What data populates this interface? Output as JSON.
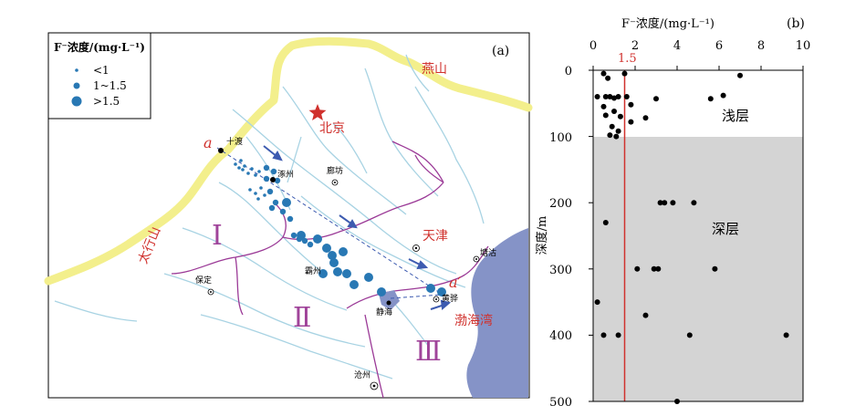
{
  "map": {
    "panel_label": "(a)",
    "legend": {
      "title": "F⁻浓度/(mg·L⁻¹)",
      "items": [
        {
          "label": "<1"
        },
        {
          "label": "1~1.5"
        },
        {
          "label": ">1.5"
        }
      ]
    },
    "cities": {
      "beijing": "北京",
      "tianjin": "天津",
      "zhuozhou": "涿州",
      "langfang": "廊坊",
      "bazhou": "霸州",
      "baoding": "保定",
      "jinghai": "静海",
      "tanggu": "塘沽",
      "huanghua": "黄骅",
      "cangzhou": "沧州",
      "shidu": "十渡"
    },
    "regions": {
      "yanshan": "燕山",
      "taihangshan": "太行山",
      "bohai": "渤海湾",
      "zone1": "Ⅰ",
      "zone2": "Ⅱ",
      "zone3": "Ⅲ"
    },
    "profile": {
      "start": "a",
      "end": "a′"
    }
  },
  "depth_plot": {
    "panel_label": "(b)",
    "x_axis_title": "F⁻浓度/(mg·L⁻¹)",
    "y_axis_title": "深度/m",
    "x_ticks": [
      "0",
      "2",
      "4",
      "6",
      "8",
      "10"
    ],
    "y_ticks": [
      "0",
      "100",
      "200",
      "300",
      "400",
      "500"
    ],
    "threshold_label": "1.5",
    "shallow_label": "浅层",
    "deep_label": "深层"
  },
  "chart_data": {
    "type": "scatter",
    "x_axis_position": "top",
    "y_axis_inverted": true,
    "xlim": [
      0,
      10
    ],
    "ylim": [
      0,
      500
    ],
    "xlabel": "F⁻浓度/(mg·L⁻¹)",
    "ylabel": "深度/m",
    "threshold_x": 1.5,
    "threshold_color": "#d0312d",
    "shallow_zone": {
      "depth_range": [
        0,
        100
      ],
      "label": "浅层"
    },
    "deep_zone": {
      "depth_range": [
        100,
        500
      ],
      "label": "深层",
      "shade": "#d4d4d4"
    },
    "points": [
      {
        "x": 0.5,
        "y": 5
      },
      {
        "x": 1.5,
        "y": 5
      },
      {
        "x": 7.0,
        "y": 8
      },
      {
        "x": 0.7,
        "y": 12
      },
      {
        "x": 0.2,
        "y": 40
      },
      {
        "x": 0.6,
        "y": 40
      },
      {
        "x": 0.8,
        "y": 40
      },
      {
        "x": 1.0,
        "y": 42
      },
      {
        "x": 1.2,
        "y": 40
      },
      {
        "x": 1.6,
        "y": 40
      },
      {
        "x": 3.0,
        "y": 43
      },
      {
        "x": 5.6,
        "y": 43
      },
      {
        "x": 6.2,
        "y": 38
      },
      {
        "x": 0.5,
        "y": 55
      },
      {
        "x": 1.8,
        "y": 52
      },
      {
        "x": 1.0,
        "y": 62
      },
      {
        "x": 0.6,
        "y": 68
      },
      {
        "x": 1.3,
        "y": 70
      },
      {
        "x": 2.5,
        "y": 72
      },
      {
        "x": 1.8,
        "y": 78
      },
      {
        "x": 0.9,
        "y": 85
      },
      {
        "x": 1.2,
        "y": 92
      },
      {
        "x": 0.8,
        "y": 98
      },
      {
        "x": 1.1,
        "y": 100
      },
      {
        "x": 3.2,
        "y": 200
      },
      {
        "x": 3.4,
        "y": 200
      },
      {
        "x": 3.8,
        "y": 200
      },
      {
        "x": 4.8,
        "y": 200
      },
      {
        "x": 0.6,
        "y": 230
      },
      {
        "x": 2.1,
        "y": 300
      },
      {
        "x": 2.9,
        "y": 300
      },
      {
        "x": 3.1,
        "y": 300
      },
      {
        "x": 5.8,
        "y": 300
      },
      {
        "x": 0.2,
        "y": 350
      },
      {
        "x": 2.5,
        "y": 370
      },
      {
        "x": 0.5,
        "y": 400
      },
      {
        "x": 1.2,
        "y": 400
      },
      {
        "x": 4.6,
        "y": 400
      },
      {
        "x": 9.2,
        "y": 400
      },
      {
        "x": 4.0,
        "y": 500
      }
    ]
  },
  "colors": {
    "mountain": "#f3ef8c",
    "river": "#a8d3e3",
    "boundary": "#9b3a97",
    "sea": "#8593c7",
    "sample": "#2878b4",
    "profile_arrow": "#3d5bb0",
    "label_red": "#d0312d",
    "zone_purple": "#a0449a"
  }
}
